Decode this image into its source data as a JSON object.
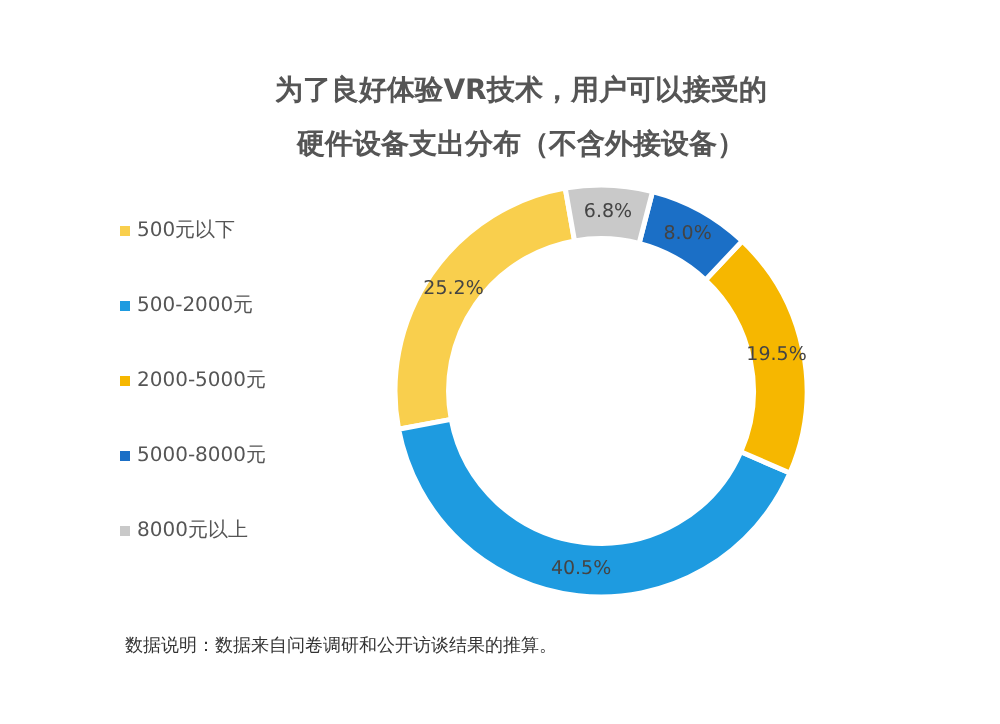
{
  "chart_data": {
    "type": "donut",
    "title": "为了良好体验VR技术，用户可以接受的",
    "subtitle": "硬件设备支出分布（不含外接设备）",
    "categories": [
      "500元以下",
      "500-2000元",
      "2000-5000元",
      "5000-8000元",
      "8000元以上"
    ],
    "values": [
      25.2,
      40.5,
      19.5,
      8.0,
      6.8
    ],
    "colors": [
      "#f9cf4d",
      "#1e9be0",
      "#f6b700",
      "#1b6fc6",
      "#c9c9c9"
    ],
    "value_labels": [
      "25.2%",
      "40.5%",
      "19.5%",
      "8.0%",
      "6.8%"
    ],
    "legend": "left",
    "annotations": [
      "数据说明：数据来自问卷调研和公开访谈结果的推算。"
    ]
  }
}
